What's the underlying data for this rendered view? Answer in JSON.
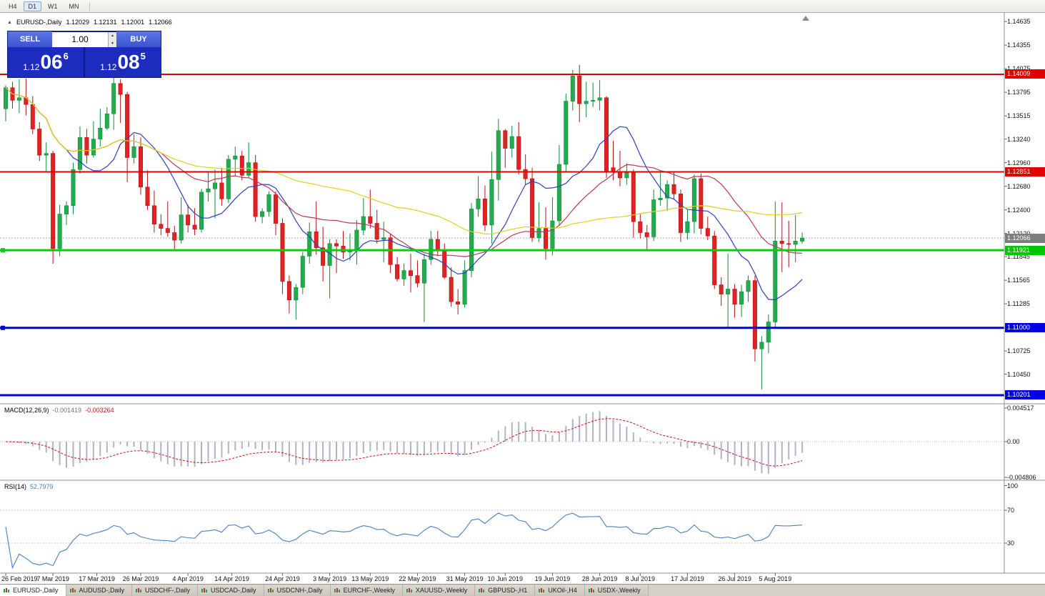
{
  "toolbar": {
    "timeframes": [
      {
        "label": "H4",
        "active": false
      },
      {
        "label": "D1",
        "active": true
      },
      {
        "label": "W1",
        "active": false
      },
      {
        "label": "MN",
        "active": false
      }
    ]
  },
  "chart_header": {
    "symbol_label": "EURUSD-,Daily",
    "open": "1.12029",
    "high": "1.12131",
    "low": "1.12001",
    "close": "1.12066"
  },
  "trade_panel": {
    "sell_label": "SELL",
    "buy_label": "BUY",
    "volume": "1.00",
    "sell_price": {
      "prefix": "1.12",
      "big": "06",
      "sup": "6"
    },
    "buy_price": {
      "prefix": "1.12",
      "big": "08",
      "sup": "5"
    }
  },
  "price_tags": [
    {
      "price": 1.14009,
      "label": "1.14009",
      "bg": "#e00000",
      "fg": "#ffffff"
    },
    {
      "price": 1.12851,
      "label": "1.12851",
      "bg": "#e00000",
      "fg": "#ffffff"
    },
    {
      "price": 1.12066,
      "label": "1.12066",
      "bg": "#7d7d7d",
      "fg": "#ffffff"
    },
    {
      "price": 1.11921,
      "label": "1.11921",
      "bg": "#00c800",
      "fg": "#ffffff"
    },
    {
      "price": 1.11,
      "label": "1.11000",
      "bg": "#0000e0",
      "fg": "#ffffff"
    },
    {
      "price": 1.10201,
      "label": "1.10201",
      "bg": "#0000e0",
      "fg": "#ffffff"
    }
  ],
  "hlines": [
    {
      "price": 1.14009,
      "color": "#e00000",
      "width": 2,
      "anchor": false
    },
    {
      "price": 1.12851,
      "color": "#e00000",
      "width": 2,
      "anchor": false
    },
    {
      "price": 1.11921,
      "color": "#00d200",
      "width": 3,
      "anchor": true
    },
    {
      "price": 1.11,
      "color": "#0000e0",
      "width": 3,
      "anchor": true
    },
    {
      "price": 1.10201,
      "color": "#0000e0",
      "width": 3,
      "anchor": false
    }
  ],
  "current_price_line": {
    "price": 1.12066,
    "color": "#a8a8a8"
  },
  "chart_data": {
    "type": "candlestick",
    "symbol": "EURUSD-",
    "timeframe": "Daily",
    "y_range": {
      "top": 1.14704,
      "bottom": 1.10082
    },
    "y_ticks": [
      "1.14635",
      "1.14355",
      "1.14075",
      "1.13795",
      "1.13515",
      "1.13240",
      "1.12960",
      "1.12680",
      "1.12400",
      "1.12120",
      "1.11845",
      "1.11565",
      "1.11285",
      "1.10725",
      "1.10450"
    ],
    "x_labels": [
      {
        "label": "26 Feb 2019",
        "i": 0
      },
      {
        "label": "7 Mar 2019",
        "i": 7
      },
      {
        "label": "17 Mar 2019",
        "i": 13.5
      },
      {
        "label": "26 Mar 2019",
        "i": 20
      },
      {
        "label": "4 Apr 2019",
        "i": 27
      },
      {
        "label": "14 Apr 2019",
        "i": 33.5
      },
      {
        "label": "24 Apr 2019",
        "i": 41
      },
      {
        "label": "3 May 2019",
        "i": 48
      },
      {
        "label": "13 May 2019",
        "i": 54
      },
      {
        "label": "22 May 2019",
        "i": 61
      },
      {
        "label": "31 May 2019",
        "i": 68
      },
      {
        "label": "10 Jun 2019",
        "i": 74
      },
      {
        "label": "19 Jun 2019",
        "i": 81
      },
      {
        "label": "28 Jun 2019",
        "i": 88
      },
      {
        "label": "8 Jul 2019",
        "i": 94
      },
      {
        "label": "17 Jul 2019",
        "i": 101
      },
      {
        "label": "26 Jul 2019",
        "i": 108
      },
      {
        "label": "5 Aug 2019",
        "i": 114
      }
    ],
    "candles": [
      [
        1.136,
        1.1388,
        1.1345,
        1.1385
      ],
      [
        1.1385,
        1.1392,
        1.136,
        1.137
      ],
      [
        1.137,
        1.1395,
        1.1355,
        1.1373
      ],
      [
        1.1373,
        1.1396,
        1.1352,
        1.1365
      ],
      [
        1.1365,
        1.1375,
        1.133,
        1.1336
      ],
      [
        1.1336,
        1.1344,
        1.1298,
        1.1305
      ],
      [
        1.1305,
        1.132,
        1.1285,
        1.1307
      ],
      [
        1.1307,
        1.131,
        1.1176,
        1.1194
      ],
      [
        1.1194,
        1.1246,
        1.1185,
        1.1235
      ],
      [
        1.1235,
        1.125,
        1.1222,
        1.1245
      ],
      [
        1.1245,
        1.1296,
        1.1235,
        1.1288
      ],
      [
        1.1288,
        1.1339,
        1.1283,
        1.1326
      ],
      [
        1.1326,
        1.1336,
        1.1295,
        1.1305
      ],
      [
        1.1305,
        1.1345,
        1.1302,
        1.1324
      ],
      [
        1.1324,
        1.136,
        1.1315,
        1.1337
      ],
      [
        1.1337,
        1.1362,
        1.1335,
        1.1354
      ],
      [
        1.1354,
        1.1398,
        1.1335,
        1.139
      ],
      [
        1.139,
        1.1395,
        1.1343,
        1.1377
      ],
      [
        1.1377,
        1.138,
        1.1273,
        1.1302
      ],
      [
        1.1302,
        1.133,
        1.1295,
        1.1315
      ],
      [
        1.1315,
        1.1326,
        1.1258,
        1.1267
      ],
      [
        1.1267,
        1.1287,
        1.124,
        1.1245
      ],
      [
        1.1245,
        1.1263,
        1.1213,
        1.1223
      ],
      [
        1.1223,
        1.1235,
        1.121,
        1.1218
      ],
      [
        1.1218,
        1.125,
        1.1208,
        1.1213
      ],
      [
        1.1213,
        1.1221,
        1.1193,
        1.1204
      ],
      [
        1.1204,
        1.1255,
        1.12,
        1.1234
      ],
      [
        1.1234,
        1.1246,
        1.1213,
        1.1222
      ],
      [
        1.1222,
        1.1242,
        1.121,
        1.1217
      ],
      [
        1.1217,
        1.1265,
        1.1213,
        1.1261
      ],
      [
        1.1261,
        1.1285,
        1.125,
        1.1265
      ],
      [
        1.1265,
        1.1288,
        1.123,
        1.1272
      ],
      [
        1.1272,
        1.129,
        1.1245,
        1.1253
      ],
      [
        1.1253,
        1.1305,
        1.1248,
        1.13
      ],
      [
        1.13,
        1.1315,
        1.128,
        1.1304
      ],
      [
        1.1304,
        1.131,
        1.1275,
        1.1281
      ],
      [
        1.1281,
        1.132,
        1.1278,
        1.1296
      ],
      [
        1.1296,
        1.1305,
        1.1226,
        1.1232
      ],
      [
        1.1232,
        1.1242,
        1.1224,
        1.1238
      ],
      [
        1.1238,
        1.1262,
        1.1232,
        1.1258
      ],
      [
        1.1258,
        1.1262,
        1.121,
        1.1224
      ],
      [
        1.1224,
        1.123,
        1.114,
        1.1155
      ],
      [
        1.1155,
        1.1162,
        1.1117,
        1.1133
      ],
      [
        1.1133,
        1.1152,
        1.111,
        1.1148
      ],
      [
        1.1148,
        1.119,
        1.114,
        1.1185
      ],
      [
        1.1185,
        1.1225,
        1.1176,
        1.1214
      ],
      [
        1.1214,
        1.125,
        1.1187,
        1.1195
      ],
      [
        1.1195,
        1.122,
        1.1155,
        1.1174
      ],
      [
        1.1174,
        1.1205,
        1.1135,
        1.12
      ],
      [
        1.12,
        1.1205,
        1.1165,
        1.1197
      ],
      [
        1.1197,
        1.1215,
        1.1182,
        1.119
      ],
      [
        1.119,
        1.1212,
        1.118,
        1.1193
      ],
      [
        1.1193,
        1.1228,
        1.1175,
        1.1216
      ],
      [
        1.1216,
        1.1254,
        1.121,
        1.1232
      ],
      [
        1.1232,
        1.1264,
        1.1218,
        1.1224
      ],
      [
        1.1224,
        1.124,
        1.12,
        1.1205
      ],
      [
        1.1205,
        1.1226,
        1.1178,
        1.1207
      ],
      [
        1.1207,
        1.1212,
        1.1165,
        1.1175
      ],
      [
        1.1175,
        1.1184,
        1.1155,
        1.1158
      ],
      [
        1.1158,
        1.1176,
        1.115,
        1.1168
      ],
      [
        1.1168,
        1.1188,
        1.1142,
        1.1162
      ],
      [
        1.1162,
        1.118,
        1.1148,
        1.1153
      ],
      [
        1.1153,
        1.1188,
        1.1107,
        1.1181
      ],
      [
        1.1181,
        1.1215,
        1.1175,
        1.1205
      ],
      [
        1.1205,
        1.1215,
        1.1185,
        1.1193
      ],
      [
        1.1193,
        1.12,
        1.1158,
        1.116
      ],
      [
        1.116,
        1.1172,
        1.1125,
        1.1131
      ],
      [
        1.1131,
        1.1146,
        1.1116,
        1.1128
      ],
      [
        1.1128,
        1.118,
        1.1124,
        1.1168
      ],
      [
        1.1168,
        1.1248,
        1.116,
        1.1241
      ],
      [
        1.1241,
        1.128,
        1.1232,
        1.1253
      ],
      [
        1.1253,
        1.1269,
        1.1215,
        1.1222
      ],
      [
        1.1222,
        1.1309,
        1.12,
        1.1276
      ],
      [
        1.1276,
        1.1348,
        1.1251,
        1.1334
      ],
      [
        1.1334,
        1.1336,
        1.129,
        1.1313
      ],
      [
        1.1313,
        1.134,
        1.1302,
        1.1327
      ],
      [
        1.1327,
        1.1344,
        1.1282,
        1.1288
      ],
      [
        1.1288,
        1.1306,
        1.127,
        1.1277
      ],
      [
        1.1277,
        1.129,
        1.1202,
        1.1207
      ],
      [
        1.1207,
        1.1249,
        1.1202,
        1.1218
      ],
      [
        1.1218,
        1.1243,
        1.1181,
        1.1194
      ],
      [
        1.1194,
        1.1255,
        1.1186,
        1.1227
      ],
      [
        1.1227,
        1.1317,
        1.1222,
        1.1294
      ],
      [
        1.1294,
        1.1378,
        1.1285,
        1.1369
      ],
      [
        1.1369,
        1.1406,
        1.1358,
        1.1399
      ],
      [
        1.1399,
        1.1412,
        1.1344,
        1.1366
      ],
      [
        1.1366,
        1.1392,
        1.135,
        1.1369
      ],
      [
        1.1369,
        1.1391,
        1.1362,
        1.137
      ],
      [
        1.137,
        1.1394,
        1.1358,
        1.1373
      ],
      [
        1.1373,
        1.1375,
        1.1278,
        1.1285
      ],
      [
        1.129,
        1.1322,
        1.1275,
        1.1285
      ],
      [
        1.1285,
        1.131,
        1.1268,
        1.1278
      ],
      [
        1.1278,
        1.1295,
        1.127,
        1.1284
      ],
      [
        1.1284,
        1.1288,
        1.1207,
        1.1226
      ],
      [
        1.1226,
        1.1235,
        1.1206,
        1.1213
      ],
      [
        1.1213,
        1.1222,
        1.1193,
        1.1208
      ],
      [
        1.1208,
        1.1264,
        1.1203,
        1.1252
      ],
      [
        1.1252,
        1.1286,
        1.1245,
        1.1254
      ],
      [
        1.1254,
        1.1275,
        1.1239,
        1.127
      ],
      [
        1.127,
        1.1285,
        1.1252,
        1.1259
      ],
      [
        1.1259,
        1.1264,
        1.1202,
        1.1213
      ],
      [
        1.1213,
        1.124,
        1.1205,
        1.1226
      ],
      [
        1.1226,
        1.1282,
        1.1212,
        1.1277
      ],
      [
        1.1277,
        1.1283,
        1.1211,
        1.1218
      ],
      [
        1.1218,
        1.1232,
        1.1204,
        1.1209
      ],
      [
        1.1209,
        1.1215,
        1.1146,
        1.1151
      ],
      [
        1.1151,
        1.116,
        1.1126,
        1.114
      ],
      [
        1.114,
        1.1188,
        1.1101,
        1.1146
      ],
      [
        1.1146,
        1.1152,
        1.1112,
        1.1128
      ],
      [
        1.1128,
        1.1151,
        1.1113,
        1.1143
      ],
      [
        1.1143,
        1.1162,
        1.1131,
        1.1156
      ],
      [
        1.1156,
        1.1162,
        1.106,
        1.1075
      ],
      [
        1.1075,
        1.109,
        1.1027,
        1.1083
      ],
      [
        1.1083,
        1.1116,
        1.107,
        1.1107
      ],
      [
        1.1107,
        1.125,
        1.1101,
        1.1203
      ],
      [
        1.1203,
        1.1249,
        1.1166,
        1.12
      ],
      [
        1.12,
        1.1227,
        1.1172,
        1.1199
      ],
      [
        1.1199,
        1.1234,
        1.1178,
        1.1203
      ],
      [
        1.12029,
        1.12131,
        1.12001,
        1.12066
      ]
    ],
    "moving_averages": [
      {
        "period": 10,
        "color": "#2c3fbe"
      },
      {
        "period": 24,
        "color": "#b93a55"
      },
      {
        "period": 52,
        "color": "#e3cf1e"
      }
    ]
  },
  "macd_panel": {
    "name": "MACD(12,26,9)",
    "value1": "-0.001419",
    "value2": "-0.003264",
    "fast": 12,
    "slow": 26,
    "signal": 9,
    "scale_max": 0.004517,
    "scale_min": -0.004806,
    "ticks": [
      {
        "label": "0.004517",
        "v": 0.004517
      },
      {
        "label": "0.00",
        "v": 0
      },
      {
        "label": "-0.004806",
        "v": -0.004806
      }
    ],
    "hist_color": "#b2b2c6",
    "signal_color": "#cc1111"
  },
  "rsi_panel": {
    "name": "RSI(14)",
    "value": "52.7979",
    "period": 14,
    "levels": [
      70,
      30
    ],
    "ticks": [
      {
        "label": "100",
        "v": 100
      },
      {
        "label": "70",
        "v": 70
      },
      {
        "label": "30",
        "v": 30
      }
    ],
    "color": "#4a7ec0"
  },
  "tabs": {
    "active_index": 0,
    "items": [
      "EURUSD-,Daily",
      "AUDUSD-,Daily",
      "USDCHF-,Daily",
      "USDCAD-,Daily",
      "USDCNH-,Daily",
      "EURCHF-,Weekly",
      "XAUUSD-,Weekly",
      "GBPUSD-,H1",
      "UKOil-,H4",
      "USDX-,Weekly"
    ]
  },
  "colors": {
    "up": "#22ab4f",
    "up_border": "#0f8a38",
    "down": "#e02222",
    "down_border": "#b31414",
    "background": "#ffffff",
    "axis_text": "#1a1a1a",
    "panel_sep": "#909090"
  }
}
